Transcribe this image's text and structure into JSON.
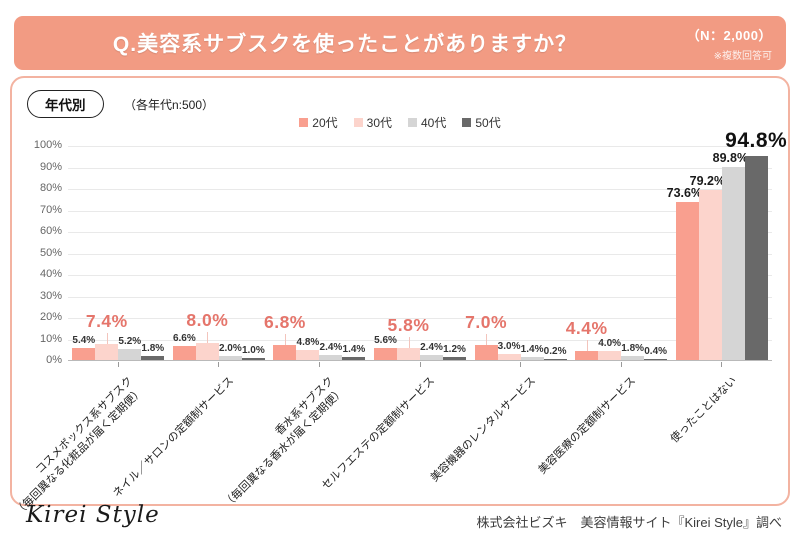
{
  "header": {
    "title": "Q.美容系サブスクを使ったことがありますか？",
    "n_label": "（N：2,000）",
    "note": "※複数回答可"
  },
  "filters": {
    "tab": "年代別",
    "sample_note": "（各年代n:500）"
  },
  "colors": {
    "header_bg": "#F29B83",
    "card_border": "#F3B3A1",
    "series": [
      "#F99F8F",
      "#FCD4CC",
      "#D5D5D5",
      "#696969"
    ],
    "accent_label": "#E5756B",
    "dark_label": "#111111",
    "leader_line": "#F3C4BC"
  },
  "chart_data": {
    "type": "bar",
    "title": "Q.美容系サブスクを使ったことがありますか？",
    "legend_position": "top",
    "grid": true,
    "ylim": [
      0,
      100
    ],
    "ytick_step": 10,
    "ytick_suffix": "%",
    "categories": [
      [
        "コスメボックス系サブスク",
        "（毎回異なる化粧品が届く定期便）"
      ],
      [
        "ネイル／サロンの定額制サービス"
      ],
      [
        "香水系サブスク",
        "（毎回異なる香水が届く定期便）"
      ],
      [
        "セルフエステの定額制サービス"
      ],
      [
        "美容機器のレンタルサービス"
      ],
      [
        "美容医療の定額制サービス"
      ],
      [
        "使ったことはない"
      ]
    ],
    "series": [
      {
        "name": "20代",
        "values": [
          5.4,
          6.6,
          6.8,
          5.6,
          7.0,
          4.4,
          73.6
        ]
      },
      {
        "name": "30代",
        "values": [
          7.4,
          8.0,
          4.8,
          5.8,
          3.0,
          4.0,
          79.2
        ]
      },
      {
        "name": "40代",
        "values": [
          5.2,
          2.0,
          2.4,
          2.4,
          1.4,
          1.8,
          89.8
        ]
      },
      {
        "name": "50代",
        "values": [
          1.8,
          1.0,
          1.4,
          1.2,
          0.2,
          0.4,
          94.8
        ]
      }
    ],
    "highlights": [
      {
        "category": 0,
        "series": 1
      },
      {
        "category": 1,
        "series": 1
      },
      {
        "category": 2,
        "series": 0
      },
      {
        "category": 3,
        "series": 1
      },
      {
        "category": 4,
        "series": 0
      },
      {
        "category": 5,
        "series": 0
      },
      {
        "category": 6,
        "series": 3,
        "style": "dark"
      }
    ]
  },
  "footer": {
    "logo": "Kirei Style",
    "source": "株式会社ビズキ　美容情報サイト『Kirei Style』調べ"
  }
}
